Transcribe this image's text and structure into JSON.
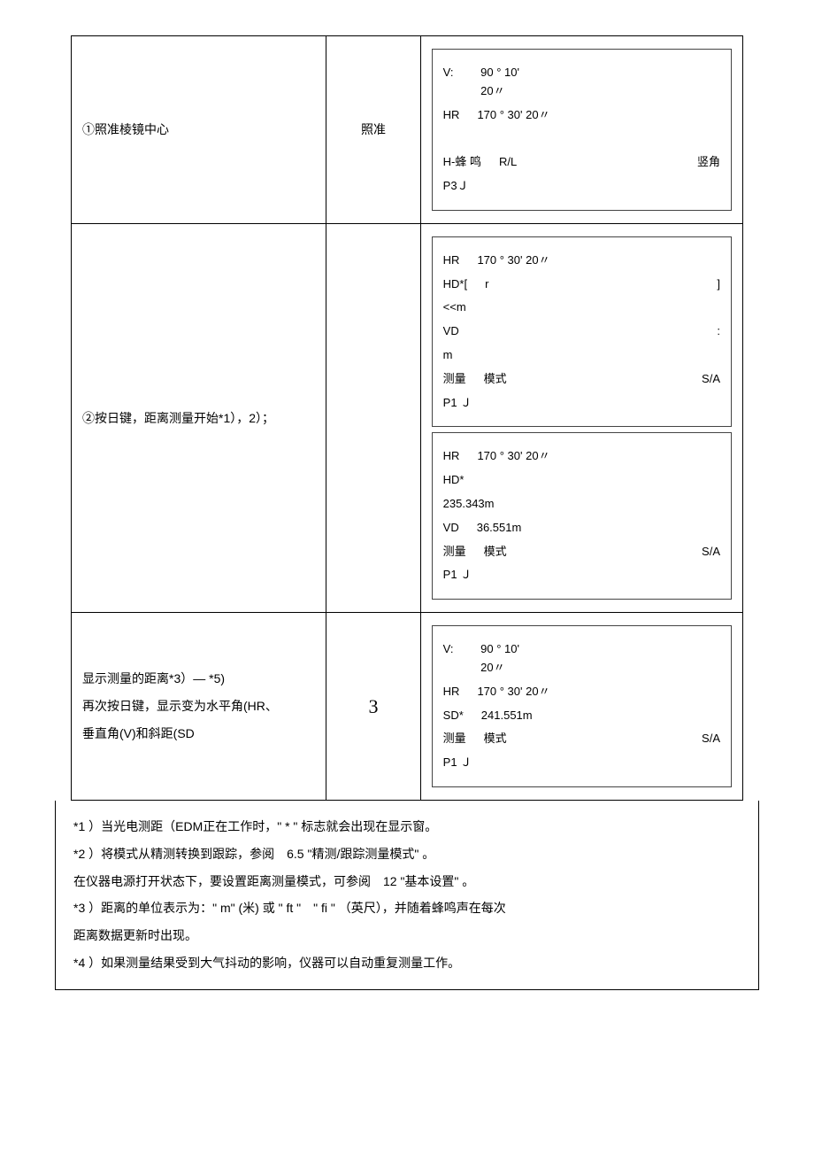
{
  "rows": [
    {
      "step": "①照准棱镜中心",
      "key": "照准",
      "screens": [
        {
          "lines": [
            {
              "left": "V:",
              "mid": "90 ° 10'",
              "mid2": "20〃"
            },
            {
              "left": "HR",
              "mid": "170 ° 30' 20〃"
            },
            {
              "blank": true
            },
            {
              "left": "H-蜂 鸣",
              "mid": "R/L",
              "right": "竖角"
            },
            {
              "left": "P3Ｊ"
            }
          ]
        }
      ]
    },
    {
      "step": "②按日键，距离测量开始*1），2）；",
      "key": "",
      "screens": [
        {
          "lines": [
            {
              "left": "HR",
              "mid": "170 ° 30' 20〃"
            },
            {
              "left": "HD*[",
              "mid": "r",
              "right": "]"
            },
            {
              "left": "<<m"
            },
            {
              "left": "VD",
              "right": ":"
            },
            {
              "left": "m"
            },
            {
              "left": "测量",
              "mid": "模式",
              "right": "S/A"
            },
            {
              "left": "P1 Ｊ"
            }
          ]
        },
        {
          "lines": [
            {
              "left": "HR",
              "mid": "170 ° 30' 20〃"
            },
            {
              "left": "HD*"
            },
            {
              "left": "235.343m"
            },
            {
              "left": "VD",
              "mid": "36.551m"
            },
            {
              "left": "测量",
              "mid": "模式",
              "right": "S/A"
            },
            {
              "left": "P1 Ｊ"
            }
          ]
        }
      ]
    },
    {
      "step_lines": [
        "显示测量的距离*3）— *5)",
        "再次按日键，显示变为水平角(HR、",
        "垂直角(V)和斜距(SD"
      ],
      "key": "3",
      "key_big": true,
      "screens": [
        {
          "lines": [
            {
              "left": "V:",
              "mid": "90 ° 10'",
              "mid2": "20〃"
            },
            {
              "left": "HR",
              "mid": "170 ° 30' 20〃"
            },
            {
              "left": "SD*",
              "mid": "241.551m"
            },
            {
              "left": "测量",
              "mid": "模式",
              "right": "S/A"
            },
            {
              "left": "P1 Ｊ"
            }
          ]
        }
      ]
    }
  ],
  "notes": [
    "*1 ）当光电测距（EDM正在工作时，\" * \" 标志就会出现在显示窗。",
    "*2 ）将模式从精测转换到跟踪，参阅　6.5 \"精测/跟踪测量模式\" 。",
    "在仪器电源打开状态下，要设置距离测量模式，可参阅　12 \"基本设置\" 。",
    "*3 ）距离的单位表示为：\" m\" (米) 或 \" ft \"　\" fi \" （英尺），并随着蜂鸣声在每次",
    "距离数据更新时出现。",
    "*4 ）如果测量结果受到大气抖动的影响，仪器可以自动重复测量工作。"
  ]
}
